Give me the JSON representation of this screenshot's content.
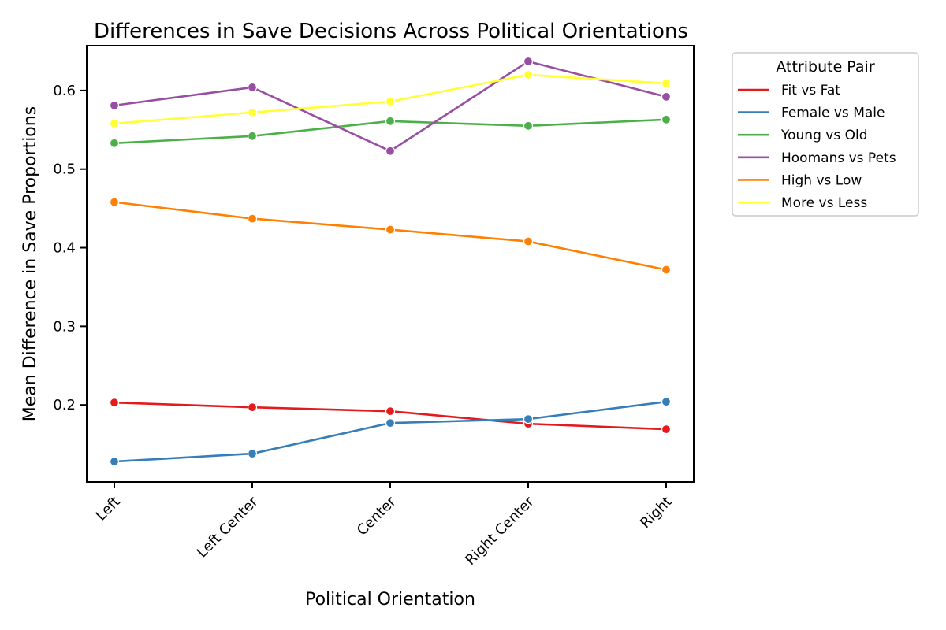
{
  "chart_data": {
    "type": "line",
    "title": "Differences in Save Decisions Across Political Orientations",
    "xlabel": "Political Orientation",
    "ylabel": "Mean Difference in Save Proportions",
    "categories": [
      "Left",
      "Left Center",
      "Center",
      "Right Center",
      "Right"
    ],
    "ylim": [
      0.102,
      0.657
    ],
    "yticks": [
      0.2,
      0.3,
      0.4,
      0.5,
      0.6
    ],
    "ytick_labels": [
      "0.2",
      "0.3",
      "0.4",
      "0.5",
      "0.6"
    ],
    "grid": false,
    "legend": {
      "title": "Attribute Pair",
      "placement": "outside-top-right"
    },
    "series": [
      {
        "name": "Fit vs Fat",
        "color": "#e41a1c",
        "values": [
          0.203,
          0.197,
          0.192,
          0.176,
          0.169
        ]
      },
      {
        "name": "Female vs Male",
        "color": "#377eb8",
        "values": [
          0.128,
          0.138,
          0.177,
          0.182,
          0.204
        ]
      },
      {
        "name": "Young vs Old",
        "color": "#4daf4a",
        "values": [
          0.533,
          0.542,
          0.561,
          0.555,
          0.563
        ]
      },
      {
        "name": "Hoomans vs Pets",
        "color": "#984ea3",
        "values": [
          0.581,
          0.604,
          0.523,
          0.637,
          0.592
        ]
      },
      {
        "name": "High vs Low",
        "color": "#ff7f00",
        "values": [
          0.458,
          0.437,
          0.423,
          0.408,
          0.372
        ]
      },
      {
        "name": "More vs Less",
        "color": "#ffff33",
        "values": [
          0.558,
          0.572,
          0.586,
          0.62,
          0.609
        ]
      }
    ]
  }
}
